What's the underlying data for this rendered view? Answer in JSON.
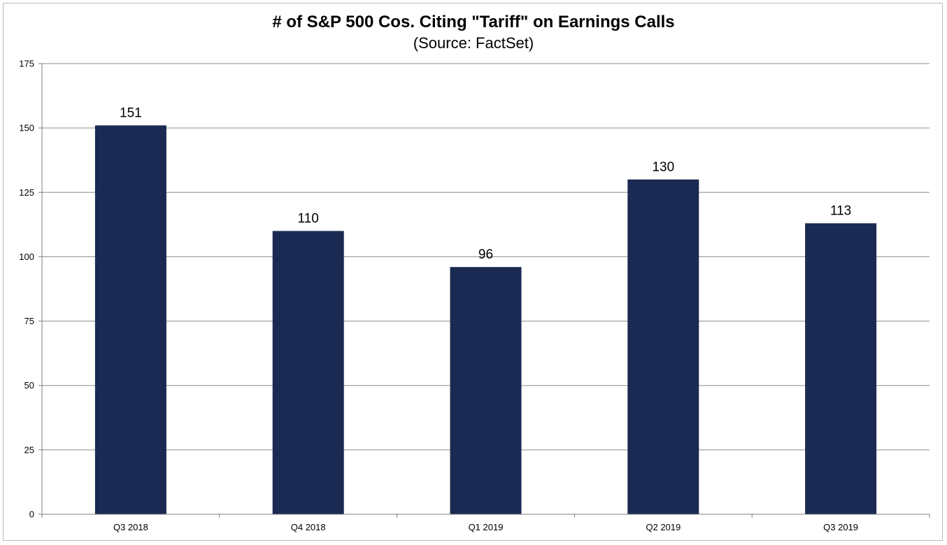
{
  "chart_data": {
    "type": "bar",
    "title": "# of S&P 500 Cos. Citing \"Tariff\" on Earnings Calls",
    "subtitle": "(Source: FactSet)",
    "categories": [
      "Q3 2018",
      "Q4 2018",
      "Q1 2019",
      "Q2 2019",
      "Q3 2019"
    ],
    "values": [
      151,
      110,
      96,
      130,
      113
    ],
    "data_labels": [
      "151",
      "110",
      "96",
      "130",
      "113"
    ],
    "ylim": [
      0,
      175
    ],
    "yticks": [
      0,
      25,
      50,
      75,
      100,
      125,
      150,
      175
    ],
    "xlabel": "",
    "ylabel": "",
    "grid": true,
    "legend": "none",
    "colors": {
      "bar": "#1b2a52",
      "grid": "#8c8c8c",
      "axis": "#7f7f7f"
    }
  }
}
